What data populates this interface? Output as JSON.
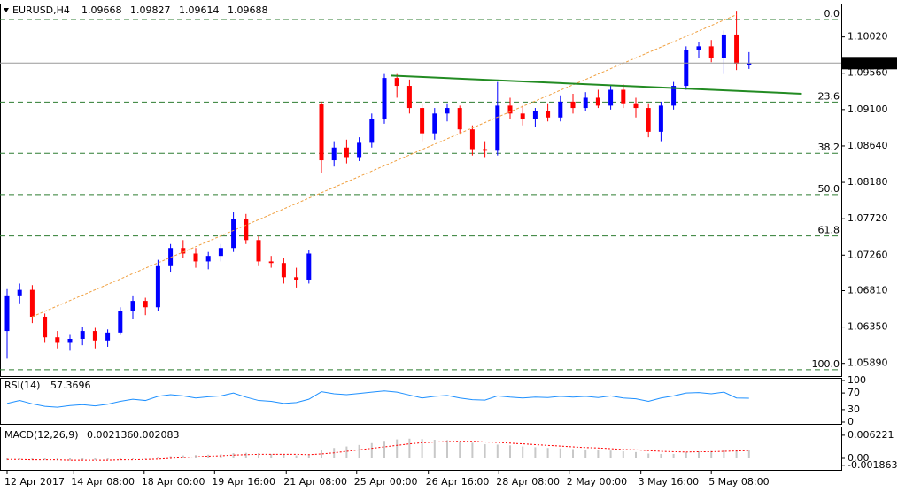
{
  "chart_data": [
    {
      "type": "candlestick",
      "title": "EURUSD,H4",
      "up_color": "#0000ff",
      "down_color": "#ff0000",
      "open": [
        1.063,
        1.0675,
        1.0682,
        1.0648,
        1.0622,
        1.0615,
        1.062,
        1.063,
        1.0618,
        1.0628,
        1.0655,
        1.0668,
        1.066,
        1.0712,
        1.0735,
        1.0728,
        1.0718,
        1.0725,
        1.0735,
        1.0772,
        1.0745,
        1.0718,
        1.0716,
        1.0698,
        1.0695,
        1.0917,
        1.0846,
        1.0862,
        1.085,
        1.0868,
        1.0898,
        1.095,
        1.094,
        1.0912,
        1.088,
        1.0905,
        1.0912,
        1.0885,
        1.086,
        1.0858,
        1.0915,
        1.0905,
        1.0898,
        1.0908,
        1.09,
        1.092,
        1.0912,
        1.0925,
        1.0915,
        1.0935,
        1.0918,
        1.0912,
        1.0882,
        1.0915,
        1.094,
        1.0985,
        1.099,
        1.0975,
        1.1005,
        1.09668
      ],
      "high": [
        1.0683,
        1.069,
        1.0688,
        1.0652,
        1.063,
        1.0625,
        1.0635,
        1.0634,
        1.0632,
        1.066,
        1.0675,
        1.0672,
        1.072,
        1.074,
        1.0745,
        1.0735,
        1.073,
        1.074,
        1.078,
        1.0778,
        1.075,
        1.0725,
        1.0722,
        1.071,
        1.0733,
        1.092,
        1.087,
        1.0872,
        1.0875,
        1.0905,
        1.0955,
        1.0955,
        1.0948,
        1.0918,
        1.0912,
        1.0918,
        1.0915,
        1.089,
        1.087,
        1.0945,
        1.0925,
        1.0915,
        1.0912,
        1.0918,
        1.0928,
        1.093,
        1.0932,
        1.0935,
        1.094,
        1.0942,
        1.0925,
        1.0918,
        1.092,
        1.0945,
        1.099,
        1.0995,
        1.0998,
        1.101,
        1.1035,
        1.09827
      ],
      "low": [
        1.0595,
        1.0665,
        1.064,
        1.0615,
        1.0608,
        1.0605,
        1.0612,
        1.0608,
        1.061,
        1.0625,
        1.0645,
        1.065,
        1.0655,
        1.0705,
        1.0722,
        1.071,
        1.0708,
        1.0718,
        1.073,
        1.074,
        1.0712,
        1.071,
        1.069,
        1.0685,
        1.069,
        1.083,
        1.0838,
        1.0842,
        1.0845,
        1.0862,
        1.0892,
        1.0925,
        1.0905,
        1.087,
        1.0872,
        1.0895,
        1.088,
        1.0852,
        1.085,
        1.0852,
        1.0898,
        1.089,
        1.0888,
        1.0895,
        1.0895,
        1.0905,
        1.0908,
        1.0912,
        1.091,
        1.0912,
        1.09,
        1.0875,
        1.087,
        1.091,
        1.0935,
        1.0975,
        1.097,
        1.0955,
        1.096,
        1.09614
      ],
      "close": [
        1.0675,
        1.0682,
        1.0648,
        1.0622,
        1.0615,
        1.062,
        1.063,
        1.0618,
        1.0628,
        1.0655,
        1.0668,
        1.066,
        1.0712,
        1.0735,
        1.0728,
        1.0718,
        1.0725,
        1.0735,
        1.0772,
        1.0745,
        1.0718,
        1.0716,
        1.0698,
        1.0695,
        1.0728,
        1.0846,
        1.0862,
        1.085,
        1.0868,
        1.0898,
        1.095,
        1.094,
        1.0912,
        1.088,
        1.0905,
        1.0912,
        1.0885,
        1.086,
        1.0858,
        1.0915,
        1.0905,
        1.0898,
        1.0908,
        1.09,
        1.092,
        1.0912,
        1.0925,
        1.0915,
        1.0935,
        1.0918,
        1.0912,
        1.0882,
        1.0915,
        1.094,
        1.0985,
        1.099,
        1.0975,
        1.1005,
        1.0968,
        1.09688
      ],
      "ylim": [
        1.0573,
        1.1043
      ],
      "yticks": [
        {
          "value": 1.1002,
          "label": "1.10020"
        },
        {
          "value": 1.0956,
          "label": "1.09560"
        },
        {
          "value": 1.091,
          "label": "1.09100"
        },
        {
          "value": 1.0864,
          "label": "1.08640"
        },
        {
          "value": 1.0818,
          "label": "1.08180"
        },
        {
          "value": 1.0772,
          "label": "1.07720"
        },
        {
          "value": 1.0726,
          "label": "1.07260"
        },
        {
          "value": 1.0681,
          "label": "1.06810"
        },
        {
          "value": 1.0635,
          "label": "1.06350"
        },
        {
          "value": 1.0589,
          "label": "1.05890"
        }
      ],
      "xticks": [
        {
          "value": 0,
          "label": "12 Apr 2017"
        },
        {
          "value": 5.3,
          "label": "14 Apr 08:00"
        },
        {
          "value": 10.9,
          "label": "18 Apr 00:00"
        },
        {
          "value": 16.5,
          "label": "19 Apr 16:00"
        },
        {
          "value": 22.2,
          "label": "21 Apr 08:00"
        },
        {
          "value": 27.8,
          "label": "25 Apr 00:00"
        },
        {
          "value": 33.5,
          "label": "26 Apr 16:00"
        },
        {
          "value": 39.1,
          "label": "28 Apr 08:00"
        },
        {
          "value": 44.7,
          "label": "2 May 00:00"
        },
        {
          "value": 50.4,
          "label": "3 May 16:00"
        },
        {
          "value": 56,
          "label": "5 May 08:00"
        }
      ],
      "fibonacci": {
        "high": 1.1024,
        "low": 1.0581,
        "color": "#2e7d32",
        "levels": [
          {
            "value": 0,
            "label": "0.0"
          },
          23.6,
          38.2,
          {
            "value": 50,
            "label": "50.0"
          },
          61.8,
          {
            "value": 100,
            "label": "100.0"
          }
        ]
      },
      "trendlines": [
        {
          "color": "#f0a040",
          "x": [
            2,
            58
          ],
          "y": [
            1.0648,
            1.103
          ]
        },
        {
          "color": "#228b22",
          "x": [
            30.5,
            63.2
          ],
          "y": [
            1.0953,
            1.093
          ]
        }
      ]
    },
    {
      "type": "line",
      "title": "RSI(14)",
      "color": "#1e90ff",
      "values": [
        45,
        52,
        44,
        38,
        36,
        40,
        42,
        39,
        43,
        50,
        55,
        52,
        62,
        66,
        63,
        58,
        61,
        63,
        70,
        60,
        52,
        50,
        45,
        47,
        55,
        73,
        68,
        66,
        69,
        72,
        75,
        72,
        65,
        58,
        62,
        64,
        58,
        54,
        53,
        63,
        60,
        58,
        60,
        59,
        62,
        60,
        62,
        59,
        63,
        58,
        56,
        50,
        58,
        63,
        70,
        71,
        68,
        72,
        58,
        57.3696
      ],
      "ylim": [
        0,
        100
      ],
      "yticks": [
        100,
        70,
        30,
        0
      ]
    },
    {
      "type": "macd",
      "title": "MACD(12,26,9)",
      "histogram_color": "#c8c8c8",
      "signal_color": "#ff0000",
      "macd": [
        -0.0005,
        -0.0004,
        -0.0004,
        -0.0005,
        -0.0006,
        -0.0006,
        -0.0005,
        -0.0005,
        -0.0004,
        -0.0003,
        -0.0002,
        -0.0001,
        0.0002,
        0.0006,
        0.0008,
        0.0009,
        0.001,
        0.0011,
        0.0014,
        0.0015,
        0.0014,
        0.0012,
        0.001,
        0.0008,
        0.0009,
        0.0022,
        0.0028,
        0.0032,
        0.0036,
        0.0041,
        0.0047,
        0.0051,
        0.0053,
        0.0052,
        0.005,
        0.0049,
        0.0046,
        0.0042,
        0.0038,
        0.0037,
        0.0035,
        0.0032,
        0.003,
        0.0028,
        0.0027,
        0.0025,
        0.0024,
        0.0022,
        0.0021,
        0.0019,
        0.0017,
        0.0013,
        0.0012,
        0.0012,
        0.0016,
        0.0019,
        0.002,
        0.0023,
        0.0022,
        0.002136
      ],
      "signal": [
        -0.0003,
        -0.0003,
        -0.0004,
        -0.0004,
        -0.0004,
        -0.0005,
        -0.0005,
        -0.0005,
        -0.0005,
        -0.0004,
        -0.0004,
        -0.0003,
        -0.0002,
        0,
        0.0002,
        0.0004,
        0.0006,
        0.0007,
        0.0009,
        0.001,
        0.0011,
        0.0011,
        0.0011,
        0.0011,
        0.001,
        0.0012,
        0.0015,
        0.0019,
        0.0023,
        0.0027,
        0.0031,
        0.0035,
        0.0039,
        0.0042,
        0.0044,
        0.0045,
        0.0046,
        0.0046,
        0.0044,
        0.0043,
        0.0041,
        0.0039,
        0.0037,
        0.0035,
        0.0033,
        0.0031,
        0.0029,
        0.0028,
        0.0026,
        0.0024,
        0.0023,
        0.0021,
        0.0019,
        0.0018,
        0.0017,
        0.0018,
        0.0018,
        0.0019,
        0.002,
        0.002083
      ],
      "ylim": [
        -0.0031,
        0.0081
      ],
      "yticks": [
        0.006221,
        {
          "value": 0,
          "label": "0.00"
        },
        -0.001863
      ]
    }
  ]
}
